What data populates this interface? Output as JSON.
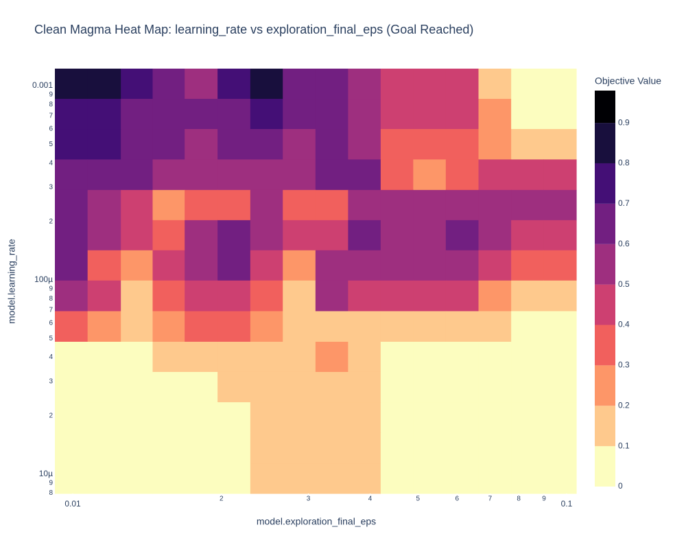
{
  "chart_data": {
    "type": "contour",
    "title": "Clean Magma Heat Map: learning_rate vs exploration_final_eps (Goal Reached)",
    "xlabel": "model.exploration_final_eps",
    "ylabel": "model.learning_rate",
    "colorbar_title": "Objective Value",
    "log_x": true,
    "log_y": true,
    "xlim": [
      0.0092,
      0.1046
    ],
    "ylim": [
      7.96e-06,
      0.001226
    ],
    "zlim": [
      0,
      0.98
    ],
    "xticks": [
      0.01,
      {
        "value": 0.02,
        "label": "2"
      },
      {
        "value": 0.03,
        "label": "3"
      },
      {
        "value": 0.04,
        "label": "4"
      },
      {
        "value": 0.05,
        "label": "5"
      },
      {
        "value": 0.06,
        "label": "6"
      },
      {
        "value": 0.07,
        "label": "7"
      },
      {
        "value": 0.08,
        "label": "8"
      },
      {
        "value": 0.09,
        "label": "9"
      },
      0.1
    ],
    "yticks": [
      0.001,
      {
        "value": 0.0009,
        "label": "9"
      },
      {
        "value": 0.0008,
        "label": "8"
      },
      {
        "value": 0.0007,
        "label": "7"
      },
      {
        "value": 0.0006,
        "label": "6"
      },
      {
        "value": 0.0005,
        "label": "5"
      },
      {
        "value": 0.0004,
        "label": "4"
      },
      {
        "value": 0.0003,
        "label": "3"
      },
      {
        "value": 0.0002,
        "label": "2"
      },
      {
        "value": 0.0001,
        "label": "100µ"
      },
      {
        "value": 9e-05,
        "label": "9"
      },
      {
        "value": 8e-05,
        "label": "8"
      },
      {
        "value": 7e-05,
        "label": "7"
      },
      {
        "value": 6e-05,
        "label": "6"
      },
      {
        "value": 5e-05,
        "label": "5"
      },
      {
        "value": 4e-05,
        "label": "4"
      },
      {
        "value": 3e-05,
        "label": "3"
      },
      {
        "value": 2e-05,
        "label": "2"
      },
      {
        "value": 1e-05,
        "label": "10µ"
      },
      {
        "value": 9e-06,
        "label": "9"
      },
      {
        "value": 8e-06,
        "label": "8"
      }
    ],
    "zticks": [
      0,
      0.1,
      0.2,
      0.3,
      0.4,
      0.5,
      0.6,
      0.7,
      0.8,
      0.9
    ],
    "colorscale": [
      "#fcfdbf",
      "#fec98d",
      "#fd9668",
      "#f1605d",
      "#cd4071",
      "#9e2f7f",
      "#721f81",
      "#440f76",
      "#180f3d",
      "#000004"
    ],
    "x": [
      0.0099,
      0.0116,
      0.0135,
      0.0156,
      0.0182,
      0.0212,
      0.0247,
      0.0287,
      0.0335,
      0.0389,
      0.0454,
      0.0527,
      0.0615,
      0.0715,
      0.0834,
      0.0968
    ],
    "y": [
      0.001025,
      0.000716,
      0.000501,
      0.000348,
      0.000243,
      0.00017,
      0.000119,
      8.3e-05,
      5.75e-05,
      4.02e-05,
      2.81e-05,
      1.96e-05,
      1.36e-05,
      9.53e-06
    ],
    "z": [
      [
        0.85,
        0.85,
        0.75,
        0.65,
        0.55,
        0.7,
        0.85,
        0.65,
        0.6,
        0.5,
        0.45,
        0.45,
        0.4,
        0.15,
        0.05,
        0.05
      ],
      [
        0.75,
        0.75,
        0.65,
        0.6,
        0.6,
        0.65,
        0.75,
        0.6,
        0.6,
        0.5,
        0.45,
        0.4,
        0.45,
        0.2,
        0.05,
        0.05
      ],
      [
        0.7,
        0.7,
        0.65,
        0.6,
        0.55,
        0.6,
        0.65,
        0.55,
        0.6,
        0.5,
        0.3,
        0.3,
        0.35,
        0.25,
        0.15,
        0.15
      ],
      [
        0.65,
        0.65,
        0.6,
        0.55,
        0.5,
        0.55,
        0.55,
        0.5,
        0.6,
        0.6,
        0.35,
        0.25,
        0.35,
        0.45,
        0.45,
        0.45
      ],
      [
        0.6,
        0.55,
        0.45,
        0.2,
        0.3,
        0.35,
        0.5,
        0.3,
        0.35,
        0.55,
        0.5,
        0.5,
        0.5,
        0.55,
        0.5,
        0.55
      ],
      [
        0.65,
        0.5,
        0.45,
        0.35,
        0.55,
        0.6,
        0.55,
        0.45,
        0.45,
        0.6,
        0.55,
        0.55,
        0.6,
        0.5,
        0.45,
        0.45
      ],
      [
        0.65,
        0.35,
        0.2,
        0.45,
        0.55,
        0.6,
        0.45,
        0.25,
        0.5,
        0.55,
        0.5,
        0.5,
        0.5,
        0.4,
        0.35,
        0.35
      ],
      [
        0.5,
        0.45,
        0.15,
        0.35,
        0.45,
        0.45,
        0.35,
        0.15,
        0.5,
        0.4,
        0.4,
        0.45,
        0.45,
        0.25,
        0.15,
        0.15
      ],
      [
        0.3,
        0.25,
        0.15,
        0.25,
        0.3,
        0.35,
        0.2,
        0.1,
        0.15,
        0.15,
        0.15,
        0.15,
        0.1,
        0.1,
        0.05,
        0.05
      ],
      [
        0.05,
        0.05,
        0.05,
        0.1,
        0.15,
        0.15,
        0.15,
        0.15,
        0.25,
        0.15,
        0.05,
        0.05,
        0.05,
        0.05,
        0.05,
        0.05
      ],
      [
        0.05,
        0.05,
        0.05,
        0.05,
        0.05,
        0.15,
        0.15,
        0.15,
        0.15,
        0.15,
        0.05,
        0.05,
        0.05,
        0.05,
        0.05,
        0.05
      ],
      [
        0.05,
        0.05,
        0.05,
        0.05,
        0.05,
        0.05,
        0.15,
        0.15,
        0.15,
        0.15,
        0.05,
        0.05,
        0.05,
        0.05,
        0.05,
        0.05
      ],
      [
        0.05,
        0.05,
        0.05,
        0.05,
        0.05,
        0.05,
        0.1,
        0.15,
        0.15,
        0.15,
        0.05,
        0.05,
        0.05,
        0.05,
        0.05,
        0.05
      ],
      [
        0.05,
        0.05,
        0.05,
        0.05,
        0.05,
        0.05,
        0.1,
        0.15,
        0.15,
        0.15,
        0.05,
        0.05,
        0.05,
        0.05,
        0.05,
        0.05
      ]
    ]
  }
}
